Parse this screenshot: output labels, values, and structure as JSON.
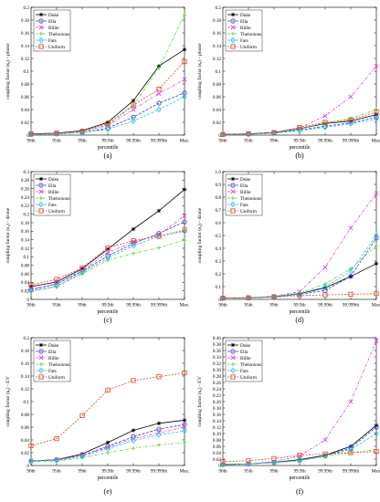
{
  "x_categories": [
    "90th",
    "95th",
    "99th",
    "99.9th",
    "99.99th",
    "99.999th",
    "Max."
  ],
  "xlabel": "percentile",
  "legend_names": [
    "Duke",
    "Ella",
    "Billie",
    "Thelonious",
    "Fats",
    "Uniform"
  ],
  "series_colors": {
    "Duke": "#000000",
    "Ella": "#3a3ad0",
    "Billie": "#e23ce2",
    "Thelonious": "#5ccf2e",
    "Fats": "#28c7e0",
    "Uniform": "#d7492a"
  },
  "series_markers": {
    "Duke": "asterisk",
    "Ella": "circle",
    "Billie": "x",
    "Thelonious": "plus",
    "Fats": "diamond",
    "Uniform": "square"
  },
  "chart_data": [
    {
      "panel": "(a)",
      "type": "line",
      "ylabel": "coupling factor (κ_t) - phone",
      "ylim": [
        0,
        0.2
      ],
      "yticks": [
        "0",
        "0.02",
        "0.04",
        "0.06",
        "0.08",
        "0.1",
        "0.12",
        "0.14",
        "0.16",
        "0.18",
        "0.2"
      ],
      "legend": "top-left",
      "series": [
        {
          "name": "Duke",
          "values": [
            0.002,
            0.003,
            0.007,
            0.02,
            0.054,
            0.108,
            0.134
          ]
        },
        {
          "name": "Ella",
          "values": [
            0.001,
            0.002,
            0.004,
            0.011,
            0.028,
            0.05,
            0.066
          ]
        },
        {
          "name": "Billie",
          "values": [
            0.001,
            0.002,
            0.005,
            0.015,
            0.04,
            0.065,
            0.087
          ]
        },
        {
          "name": "Thelonious",
          "values": [
            0.001,
            0.002,
            0.005,
            0.016,
            0.046,
            0.105,
            0.188
          ]
        },
        {
          "name": "Fats",
          "values": [
            0.001,
            0.002,
            0.004,
            0.009,
            0.022,
            0.04,
            0.06
          ]
        },
        {
          "name": "Uniform",
          "values": [
            0.002,
            0.003,
            0.006,
            0.018,
            0.047,
            0.072,
            0.115
          ]
        }
      ]
    },
    {
      "panel": "(b)",
      "type": "line",
      "ylabel": "coupling factor (κ_t) - phone",
      "ylim": [
        0,
        0.2
      ],
      "yticks": [
        "0",
        "0.02",
        "0.04",
        "0.06",
        "0.08",
        "0.1",
        "0.12",
        "0.14",
        "0.16",
        "0.18",
        "0.2"
      ],
      "legend": "top-left",
      "series": [
        {
          "name": "Duke",
          "values": [
            0.001,
            0.002,
            0.004,
            0.01,
            0.018,
            0.022,
            0.032
          ]
        },
        {
          "name": "Ella",
          "values": [
            0.001,
            0.002,
            0.003,
            0.008,
            0.014,
            0.019,
            0.028
          ]
        },
        {
          "name": "Billie",
          "values": [
            0.001,
            0.002,
            0.004,
            0.011,
            0.03,
            0.06,
            0.108
          ]
        },
        {
          "name": "Thelonious",
          "values": [
            0.001,
            0.002,
            0.004,
            0.01,
            0.019,
            0.026,
            0.04
          ]
        },
        {
          "name": "Fats",
          "values": [
            0.001,
            0.001,
            0.003,
            0.007,
            0.012,
            0.018,
            0.025
          ]
        },
        {
          "name": "Uniform",
          "values": [
            0.001,
            0.002,
            0.004,
            0.012,
            0.02,
            0.024,
            0.036
          ]
        }
      ]
    },
    {
      "panel": "(c)",
      "type": "line",
      "ylabel": "coupling factor (κ_t) - drone",
      "ylim": [
        0,
        0.3
      ],
      "yticks": [
        "0",
        "0.02",
        "0.04",
        "0.06",
        "0.08",
        "0.1",
        "0.12",
        "0.14",
        "0.16",
        "0.18",
        "0.2",
        "0.22",
        "0.24",
        "0.26",
        "0.28",
        "0.3"
      ],
      "legend": "top-left",
      "series": [
        {
          "name": "Duke",
          "values": [
            0.03,
            0.041,
            0.072,
            0.118,
            0.165,
            0.208,
            0.258
          ]
        },
        {
          "name": "Ella",
          "values": [
            0.023,
            0.036,
            0.066,
            0.102,
            0.131,
            0.155,
            0.182
          ]
        },
        {
          "name": "Billie",
          "values": [
            0.024,
            0.037,
            0.068,
            0.11,
            0.135,
            0.152,
            0.196
          ]
        },
        {
          "name": "Thelonious",
          "values": [
            0.018,
            0.03,
            0.06,
            0.092,
            0.108,
            0.121,
            0.139
          ]
        },
        {
          "name": "Fats",
          "values": [
            0.02,
            0.031,
            0.063,
            0.097,
            0.126,
            0.148,
            0.16
          ]
        },
        {
          "name": "Uniform",
          "values": [
            0.034,
            0.047,
            0.074,
            0.121,
            0.138,
            0.148,
            0.163
          ]
        }
      ]
    },
    {
      "panel": "(d)",
      "type": "line",
      "ylabel": "coupling factor (κ_t) - drone",
      "ylim": [
        0,
        1
      ],
      "yticks": [
        "0",
        "0.1",
        "0.2",
        "0.3",
        "0.4",
        "0.5",
        "0.6",
        "0.7",
        "0.8",
        "0.9",
        "1.0"
      ],
      "legend": "top-left",
      "series": [
        {
          "name": "Duke",
          "values": [
            0.01,
            0.012,
            0.02,
            0.045,
            0.09,
            0.18,
            0.28
          ]
        },
        {
          "name": "Ella",
          "values": [
            0.01,
            0.012,
            0.02,
            0.04,
            0.07,
            0.18,
            0.48
          ]
        },
        {
          "name": "Billie",
          "values": [
            0.01,
            0.014,
            0.025,
            0.06,
            0.25,
            0.56,
            0.83
          ]
        },
        {
          "name": "Thelonious",
          "values": [
            0.01,
            0.013,
            0.022,
            0.05,
            0.12,
            0.24,
            0.42
          ]
        },
        {
          "name": "Fats",
          "values": [
            0.01,
            0.012,
            0.021,
            0.045,
            0.1,
            0.22,
            0.5
          ]
        },
        {
          "name": "Uniform",
          "values": [
            0.01,
            0.012,
            0.018,
            0.03,
            0.035,
            0.04,
            0.045
          ]
        }
      ]
    },
    {
      "panel": "(e)",
      "type": "line",
      "ylabel": "coupling factor (κ_t) - EV",
      "ylim": [
        0,
        0.2
      ],
      "yticks": [
        "0",
        "0.02",
        "0.04",
        "0.06",
        "0.08",
        "0.1",
        "0.12",
        "0.14",
        "0.16",
        "0.18",
        "0.2"
      ],
      "legend": "top-left",
      "series": [
        {
          "name": "Duke",
          "values": [
            0.007,
            0.009,
            0.018,
            0.036,
            0.055,
            0.066,
            0.071
          ]
        },
        {
          "name": "Ella",
          "values": [
            0.007,
            0.009,
            0.016,
            0.03,
            0.045,
            0.057,
            0.064
          ]
        },
        {
          "name": "Billie",
          "values": [
            0.007,
            0.009,
            0.016,
            0.028,
            0.042,
            0.051,
            0.06
          ]
        },
        {
          "name": "Thelonious",
          "values": [
            0.006,
            0.007,
            0.012,
            0.02,
            0.027,
            0.032,
            0.036
          ]
        },
        {
          "name": "Fats",
          "values": [
            0.007,
            0.008,
            0.014,
            0.026,
            0.039,
            0.048,
            0.054
          ]
        },
        {
          "name": "Uniform",
          "values": [
            0.031,
            0.042,
            0.078,
            0.118,
            0.133,
            0.139,
            0.145
          ]
        }
      ]
    },
    {
      "panel": "(f)",
      "type": "line",
      "ylabel": "coupling factor (κ_t) - EV",
      "ylim": [
        0,
        0.4
      ],
      "yticks": [
        "0",
        "0.02",
        "0.04",
        "0.06",
        "0.08",
        "0.10",
        "0.12",
        "0.14",
        "0.16",
        "0.18",
        "0.20",
        "0.22",
        "0.24",
        "0.26",
        "0.28",
        "0.30",
        "0.32",
        "0.34",
        "0.36",
        "0.38",
        "0.40"
      ],
      "legend": "top-left",
      "series": [
        {
          "name": "Duke",
          "values": [
            0.003,
            0.005,
            0.01,
            0.018,
            0.032,
            0.06,
            0.126
          ]
        },
        {
          "name": "Ella",
          "values": [
            0.003,
            0.005,
            0.009,
            0.016,
            0.03,
            0.055,
            0.12
          ]
        },
        {
          "name": "Billie",
          "values": [
            0.003,
            0.005,
            0.012,
            0.03,
            0.08,
            0.2,
            0.39
          ]
        },
        {
          "name": "Thelonious",
          "values": [
            0.003,
            0.005,
            0.009,
            0.015,
            0.028,
            0.04,
            0.05
          ]
        },
        {
          "name": "Fats",
          "values": [
            0.003,
            0.005,
            0.009,
            0.016,
            0.03,
            0.05,
            0.1
          ]
        },
        {
          "name": "Uniform",
          "values": [
            0.012,
            0.015,
            0.022,
            0.032,
            0.036,
            0.04,
            0.044
          ]
        }
      ]
    }
  ]
}
